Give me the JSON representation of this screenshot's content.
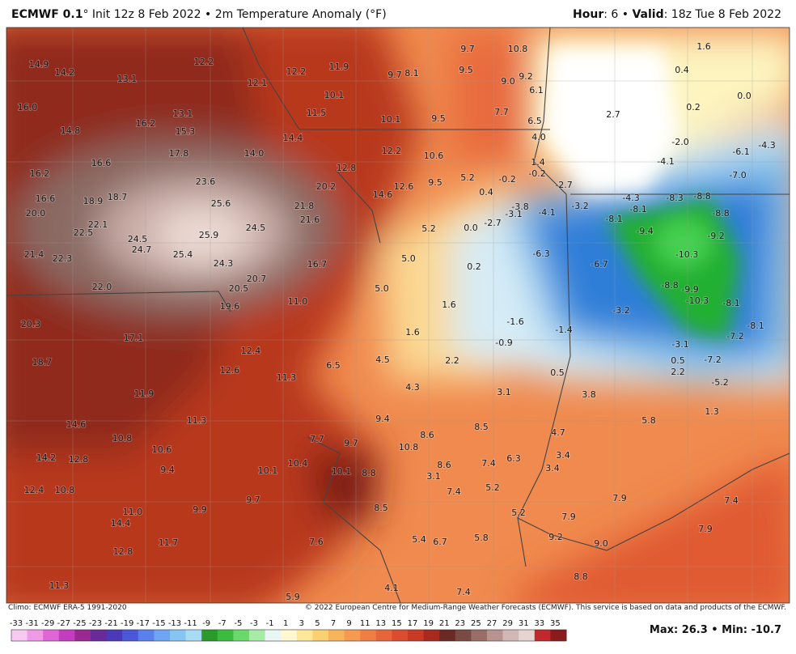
{
  "header": {
    "model": "ECMWF 0.1",
    "title": "° Init 12z 8 Feb 2022 • 2m Temperature Anomaly (°F)",
    "hour_label": "Hour",
    "hour": ": 6 •",
    "valid_label": "Valid",
    "valid": ": 18z Tue 8 Feb 2022"
  },
  "map": {
    "labels": [
      "14.9",
      "14.2",
      "13.1",
      "12.2",
      "12.1",
      "12.2",
      "11.9",
      "9.7",
      "8.1",
      "9.7",
      "10.8",
      "9.5",
      "9.0",
      "9.2",
      "6.1",
      "16.0",
      "14.8",
      "16.2",
      "13.1",
      "15.3",
      "10.1",
      "11.5",
      "10.1",
      "9.5",
      "7.7",
      "6.5",
      "4.0",
      "2.7",
      "1.6",
      "0.4",
      "0.2",
      "0.0",
      "-2.0",
      "-6.1",
      "-4.3",
      "-4.1",
      "-7.0",
      "17.8",
      "14.0",
      "14.4",
      "12.2",
      "10.6",
      "16.6",
      "16.2",
      "23.6",
      "12.8",
      "20.2",
      "14.6",
      "12.6",
      "9.5",
      "5.2",
      "-0.2",
      "1.4",
      "-0.2",
      "-2.7",
      "0.4",
      "16.6",
      "18.9",
      "18.7",
      "25.6",
      "21.8",
      "21.6",
      "20.0",
      "22.1",
      "22.5",
      "24.5",
      "25.9",
      "24.5",
      "24.7",
      "25.4",
      "24.3",
      "21.4",
      "22.3",
      "16.7",
      "20.7",
      "20.5",
      "22.0",
      "19.6",
      "5.2",
      "0.0",
      "-2.7",
      "-3.1",
      "-3.8",
      "-4.1",
      "-3.2",
      "-4.3",
      "-8.3",
      "-8.8",
      "-8.1",
      "-8.1",
      "-8.8",
      "-9.4",
      "-9.2",
      "5.0",
      "0.2",
      "-6.3",
      "-6.7",
      "-10.3",
      "5.0",
      "-8.8",
      "-9.9",
      "-10.3",
      "-8.1",
      "11.0",
      "1.6",
      "-3.2",
      "-8.1",
      "20.3",
      "17.1",
      "1.6",
      "-1.6",
      "-1.4",
      "-0.9",
      "-7.2",
      "-3.1",
      "12.4",
      "18.7",
      "4.5",
      "2.2",
      "0.5",
      "-7.2",
      "6.5",
      "12.6",
      "0.5",
      "2.2",
      "11.3",
      "-5.2",
      "4.3",
      "3.1",
      "3.8",
      "11.9",
      "1.3",
      "9.4",
      "11.3",
      "8.5",
      "5.8",
      "14.6",
      "10.8",
      "8.6",
      "4.7",
      "7.7",
      "9.7",
      "10.8",
      "10.6",
      "3.4",
      "14.2",
      "12.8",
      "6.3",
      "10.4",
      "8.6",
      "7.4",
      "10.1",
      "10.1",
      "8.8",
      "3.1",
      "3.4",
      "9.4",
      "5.2",
      "7.4",
      "12.4",
      "10.8",
      "9.7",
      "7.9",
      "7.4",
      "8.5",
      "9.9",
      "11.0",
      "5.2",
      "7.9",
      "14.4",
      "9.2",
      "9.0",
      "7.9",
      "5.8",
      "5.4",
      "6.7",
      "7.6",
      "11.7",
      "12.8",
      "8.8",
      "4.1",
      "7.4",
      "11.3",
      "5.9"
    ]
  },
  "footer": {
    "climo": "Climo: ECMWF ERA-5 1991-2020",
    "credit": "© 2022 European Centre for Medium-Range Weather Forecasts (ECMWF). This service is based on data and products of the ECMWF."
  },
  "colorbar": {
    "ticks": [
      -33,
      -31,
      -29,
      -27,
      -25,
      -23,
      -21,
      -19,
      -17,
      -15,
      -13,
      -11,
      -9,
      -7,
      -5,
      -3,
      -1,
      1,
      3,
      5,
      7,
      9,
      11,
      13,
      15,
      17,
      19,
      21,
      23,
      25,
      27,
      29,
      31,
      33,
      35
    ]
  },
  "stats": "Max: 26.3 • Min: -10.7"
}
